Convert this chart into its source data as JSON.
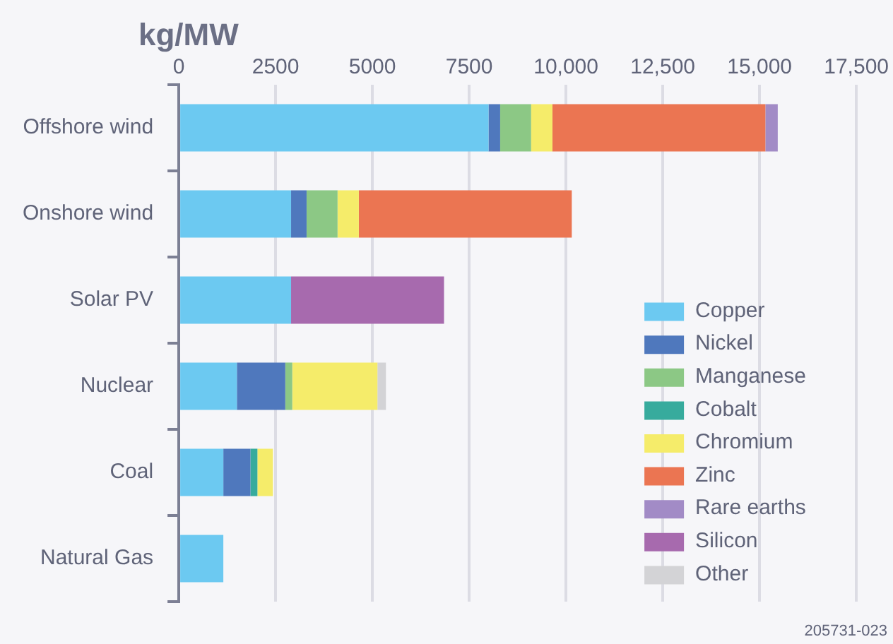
{
  "chart_data": {
    "type": "bar",
    "orientation": "horizontal",
    "stacked": true,
    "title": "kg/MW",
    "categories": [
      "Offshore wind",
      "Onshore wind",
      "Solar PV",
      "Nuclear",
      "Coal",
      "Natural Gas"
    ],
    "series": [
      {
        "name": "Copper",
        "color": "#6cc9f1",
        "values": [
          8000,
          2900,
          2900,
          1500,
          1150,
          1150
        ]
      },
      {
        "name": "Nickel",
        "color": "#4f78bd",
        "values": [
          300,
          400,
          null,
          1250,
          700,
          null
        ]
      },
      {
        "name": "Manganese",
        "color": "#8cc885",
        "values": [
          800,
          800,
          null,
          180,
          null,
          null
        ]
      },
      {
        "name": "Cobalt",
        "color": "#37ab9d",
        "values": [
          null,
          null,
          null,
          null,
          180,
          null
        ]
      },
      {
        "name": "Chromium",
        "color": "#f5ec6a",
        "values": [
          550,
          550,
          null,
          2200,
          400,
          null
        ]
      },
      {
        "name": "Zinc",
        "color": "#eb7552",
        "values": [
          5500,
          5500,
          null,
          null,
          null,
          null
        ]
      },
      {
        "name": "Rare earths",
        "color": "#a28bc6",
        "values": [
          320,
          null,
          null,
          null,
          null,
          null
        ]
      },
      {
        "name": "Silicon",
        "color": "#a76aae",
        "values": [
          null,
          null,
          3950,
          null,
          null,
          null
        ]
      },
      {
        "name": "Other",
        "color": "#d3d3d6",
        "values": [
          null,
          null,
          null,
          220,
          null,
          null
        ]
      }
    ],
    "xlim": [
      0,
      17500
    ],
    "xticks": [
      0,
      2500,
      5000,
      7500,
      {
        "value": 10000,
        "label": "10,000"
      },
      {
        "value": 12500,
        "label": "12,500"
      },
      {
        "value": 15000,
        "label": "15,000"
      },
      {
        "value": 17500,
        "label": "17,500"
      }
    ],
    "grid": "x",
    "legend": "bottom right",
    "annotations": [
      "205731-023"
    ]
  }
}
